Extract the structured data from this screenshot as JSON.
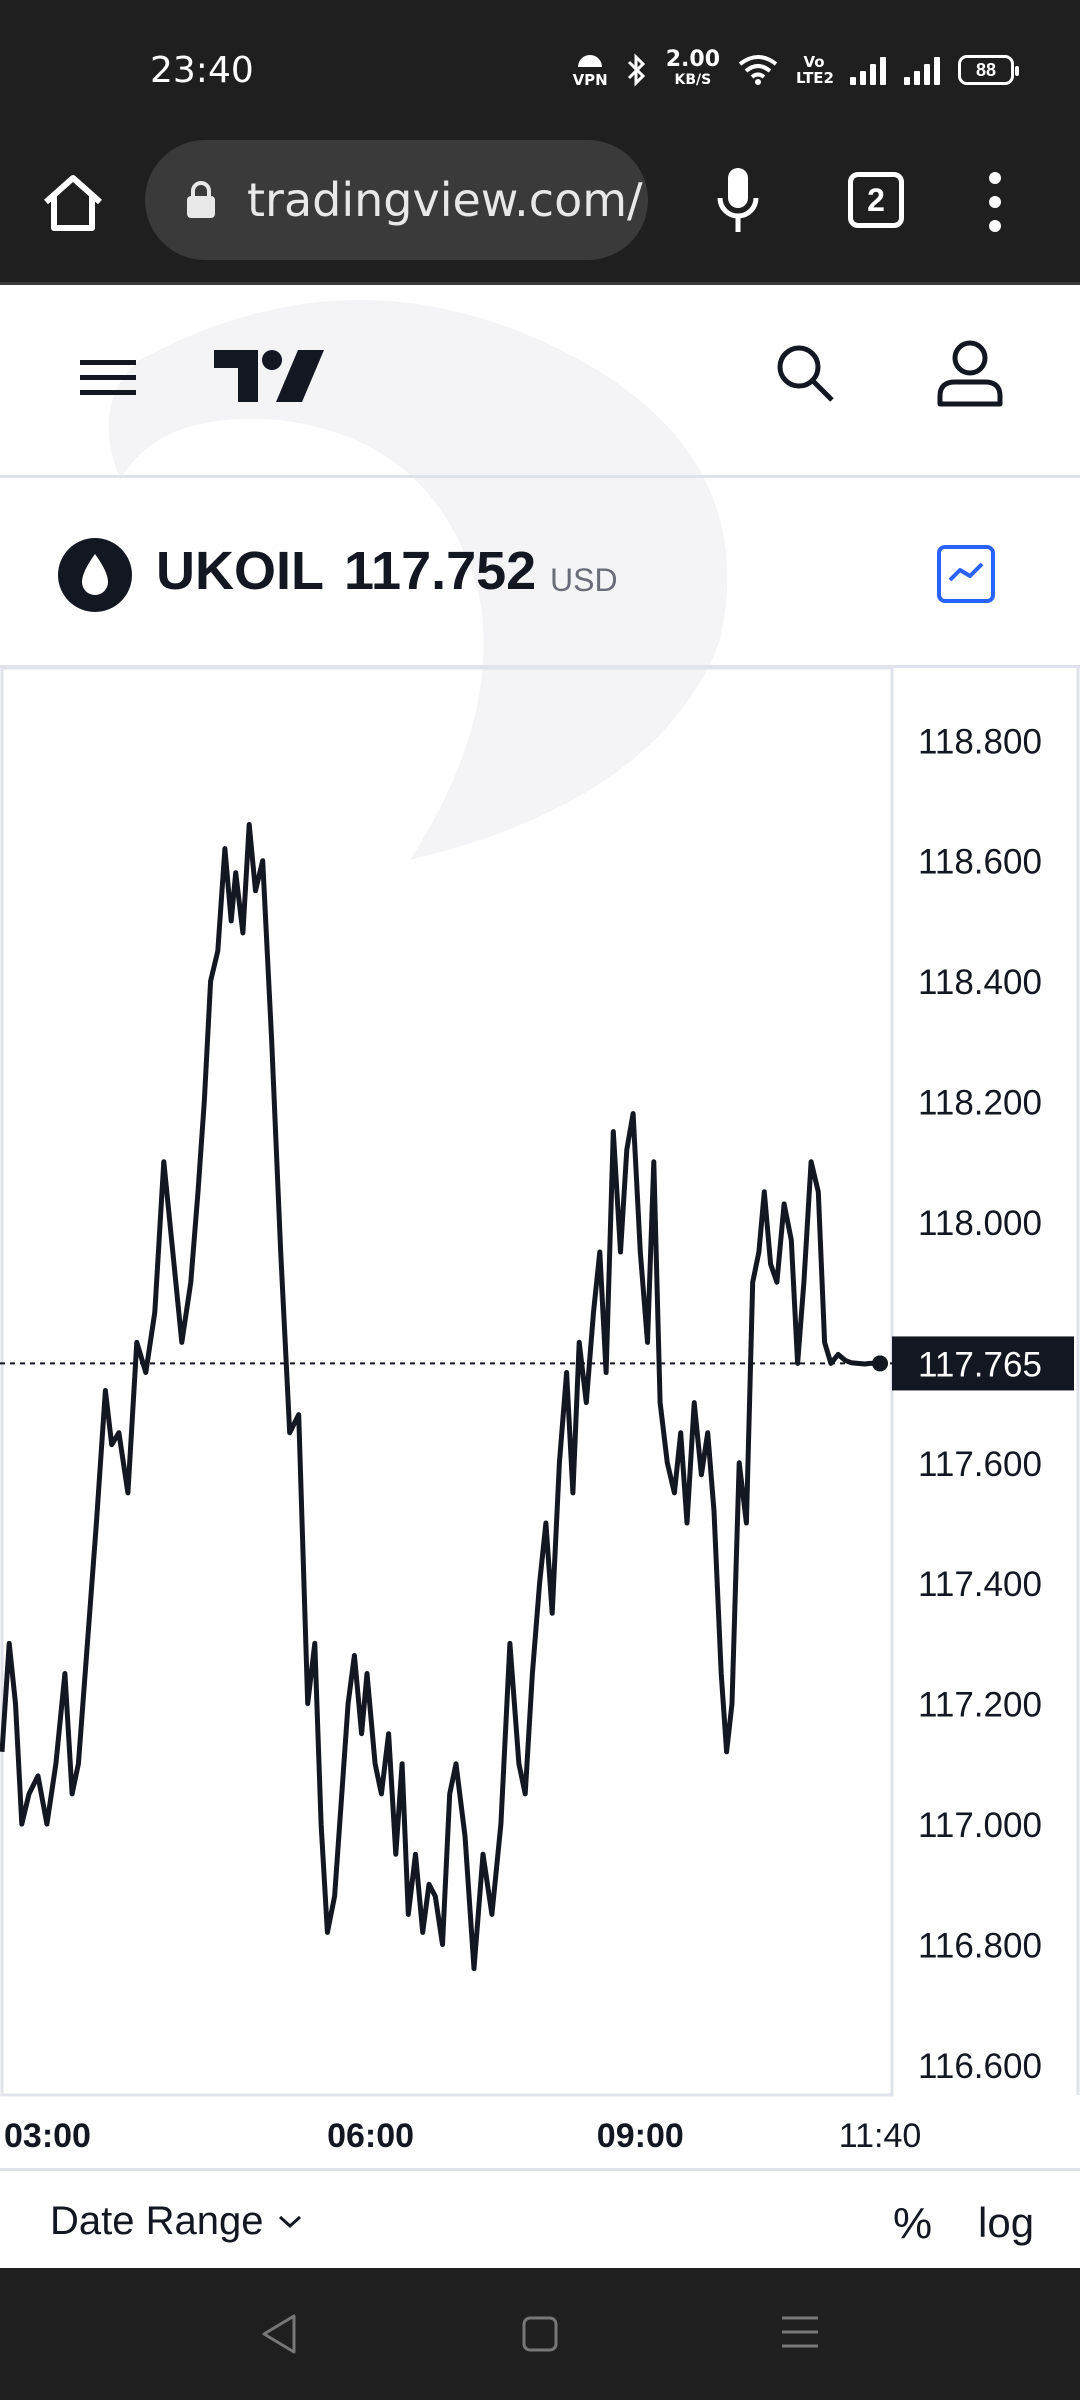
{
  "status_bar": {
    "time": "23:40",
    "vpn_label": "VPN",
    "speed_value": "2.00",
    "speed_unit": "KB/S",
    "volte_label": "Vo LTE2",
    "battery": "88"
  },
  "browser": {
    "url": "tradingview.com/",
    "tab_count": "2"
  },
  "symbol": {
    "name": "UKOIL",
    "price": "117.752",
    "currency": "USD"
  },
  "toolbar": {
    "date_range_label": "Date Range",
    "percent_label": "%",
    "log_label": "log"
  },
  "colors": {
    "line": "#131722",
    "grid_border": "#e0e3eb",
    "accent": "#2962ff"
  },
  "chart_data": {
    "type": "line",
    "ylim": [
      116.55,
      118.92
    ],
    "y_ticks": [
      118.8,
      118.6,
      118.4,
      118.2,
      118.0,
      117.6,
      117.4,
      117.2,
      117.0,
      116.8,
      116.6
    ],
    "y_tick_labels": [
      "118.800",
      "118.600",
      "118.400",
      "118.200",
      "118.000",
      "117.600",
      "117.400",
      "117.200",
      "117.000",
      "116.800",
      "116.600"
    ],
    "x_range": [
      1.9,
      11.8
    ],
    "x_ticks": [
      3,
      6,
      9,
      11.667
    ],
    "x_tick_labels": [
      "03:00",
      "06:00",
      "09:00",
      "11:40"
    ],
    "current_value": 117.765,
    "current_label": "117.765",
    "series": [
      {
        "x": [
          1.9,
          1.98,
          2.05,
          2.12,
          2.2,
          2.3,
          2.4,
          2.5,
          2.6,
          2.68,
          2.75,
          2.85,
          2.95,
          3.05,
          3.12,
          3.2,
          3.3,
          3.4,
          3.5,
          3.6,
          3.7,
          3.8,
          3.9,
          4.0,
          4.08,
          4.15,
          4.22,
          4.3,
          4.38,
          4.45,
          4.5,
          4.58,
          4.65,
          4.72,
          4.8,
          4.9,
          5.0,
          5.1,
          5.2,
          5.3,
          5.38,
          5.45,
          5.52,
          5.6,
          5.68,
          5.75,
          5.82,
          5.9,
          5.96,
          6.05,
          6.12,
          6.2,
          6.28,
          6.35,
          6.42,
          6.5,
          6.58,
          6.65,
          6.72,
          6.8,
          6.88,
          6.95,
          7.05,
          7.15,
          7.25,
          7.35,
          7.45,
          7.55,
          7.65,
          7.72,
          7.8,
          7.88,
          7.95,
          8.02,
          8.1,
          8.18,
          8.25,
          8.32,
          8.4,
          8.48,
          8.55,
          8.62,
          8.7,
          8.78,
          8.85,
          8.92,
          9.0,
          9.08,
          9.15,
          9.22,
          9.3,
          9.38,
          9.45,
          9.52,
          9.6,
          9.68,
          9.75,
          9.82,
          9.9,
          9.96,
          10.02,
          10.1,
          10.18,
          10.25,
          10.32,
          10.38,
          10.45,
          10.52,
          10.6,
          10.68,
          10.75,
          10.82,
          10.9,
          10.98,
          11.05,
          11.12,
          11.2,
          11.28,
          11.35,
          11.42,
          11.5,
          11.55,
          11.6,
          11.667
        ],
        "y": [
          117.12,
          117.3,
          117.2,
          117.0,
          117.05,
          117.08,
          117.0,
          117.1,
          117.25,
          117.05,
          117.1,
          117.3,
          117.5,
          117.72,
          117.63,
          117.65,
          117.55,
          117.8,
          117.75,
          117.85,
          118.1,
          117.95,
          117.8,
          117.9,
          118.05,
          118.2,
          118.4,
          118.45,
          118.62,
          118.5,
          118.58,
          118.48,
          118.66,
          118.55,
          118.6,
          118.3,
          117.95,
          117.65,
          117.68,
          117.2,
          117.3,
          117.0,
          116.82,
          116.88,
          117.05,
          117.2,
          117.28,
          117.15,
          117.25,
          117.1,
          117.05,
          117.15,
          116.95,
          117.1,
          116.85,
          116.95,
          116.82,
          116.9,
          116.88,
          116.8,
          117.05,
          117.1,
          116.98,
          116.76,
          116.95,
          116.85,
          117.0,
          117.3,
          117.1,
          117.05,
          117.25,
          117.4,
          117.5,
          117.35,
          117.6,
          117.75,
          117.55,
          117.8,
          117.7,
          117.85,
          117.95,
          117.75,
          118.15,
          117.95,
          118.12,
          118.18,
          117.95,
          117.8,
          118.1,
          117.7,
          117.6,
          117.55,
          117.65,
          117.5,
          117.7,
          117.58,
          117.65,
          117.52,
          117.25,
          117.12,
          117.2,
          117.6,
          117.5,
          117.9,
          117.95,
          118.05,
          117.93,
          117.9,
          118.03,
          117.97,
          117.765,
          117.9,
          118.1,
          118.05,
          117.8,
          117.765,
          117.78,
          117.77,
          117.766,
          117.765,
          117.764,
          117.765,
          117.765,
          117.765
        ]
      }
    ]
  }
}
